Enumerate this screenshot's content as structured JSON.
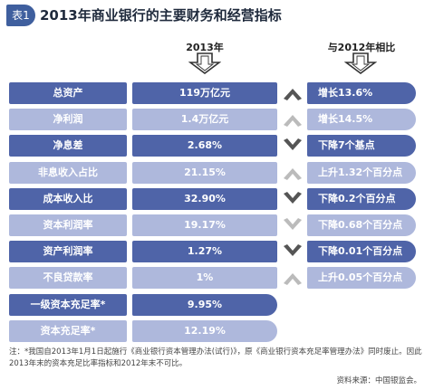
{
  "badge": "表1",
  "title": "2013年商业银行的主要财务和经营指标",
  "columns": {
    "value_header": "2013年",
    "change_header": "与2012年相比"
  },
  "colors": {
    "dark": "#4f64a8",
    "light": "#aeb8dc",
    "arrow_dark": "#555555",
    "arrow_light": "#bbbbbb"
  },
  "rows": [
    {
      "label": "总资产",
      "value": "119万亿元",
      "change": "增长13.6%",
      "trend": "up",
      "shade": "dark"
    },
    {
      "label": "净利润",
      "value": "1.4万亿元",
      "change": "增长14.5%",
      "trend": "up",
      "shade": "light"
    },
    {
      "label": "净息差",
      "value": "2.68%",
      "change": "下降7个基点",
      "trend": "down",
      "shade": "dark"
    },
    {
      "label": "非息收入占比",
      "value": "21.15%",
      "change": "上升1.32个百分点",
      "trend": "up",
      "shade": "light"
    },
    {
      "label": "成本收入比",
      "value": "32.90%",
      "change": "下降0.2个百分点",
      "trend": "down",
      "shade": "dark"
    },
    {
      "label": "资本利润率",
      "value": "19.17%",
      "change": "下降0.68个百分点",
      "trend": "down",
      "shade": "light"
    },
    {
      "label": "资产利润率",
      "value": "1.27%",
      "change": "下降0.01个百分点",
      "trend": "down",
      "shade": "dark"
    },
    {
      "label": "不良贷款率",
      "value": "1%",
      "change": "上升0.05个百分点",
      "trend": "up",
      "shade": "light"
    },
    {
      "label": "一级资本充足率*",
      "value": "9.95%",
      "change": "",
      "trend": "none",
      "shade": "dark"
    },
    {
      "label": "资本充足率*",
      "value": "12.19%",
      "change": "",
      "trend": "none",
      "shade": "light"
    }
  ],
  "note": "注：*我国自2013年1月1日起施行《商业银行资本管理办法(试行)》，原《商业银行资本充足率管理办法》同时废止。因此2013年末的资本充足比率指标和2012年末不可比。",
  "source": "资料来源：中国银监会。"
}
